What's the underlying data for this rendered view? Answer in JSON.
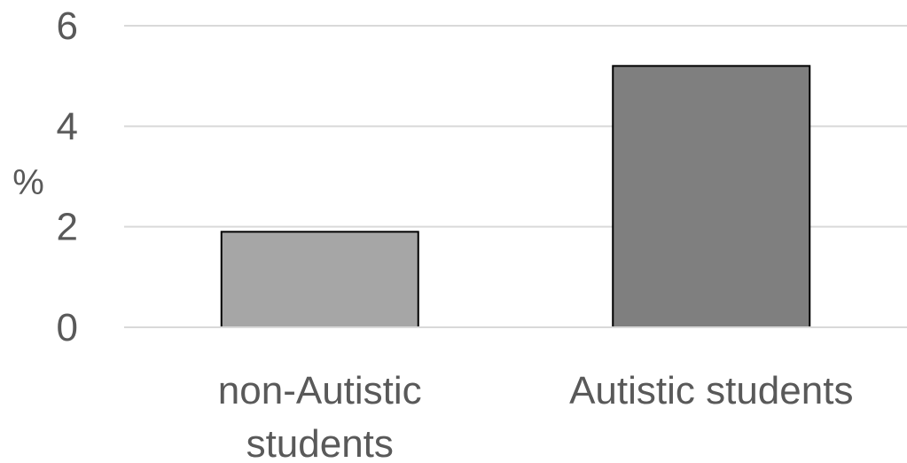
{
  "chart_data": {
    "type": "bar",
    "categories": [
      "non-Autistic students",
      "Autistic students"
    ],
    "category_label_lines": [
      [
        "non-Autistic",
        "students"
      ],
      [
        "Autistic students"
      ]
    ],
    "values": [
      1.9,
      5.2
    ],
    "bar_colors": [
      "#a6a6a6",
      "#7f7f7f"
    ],
    "bar_stroke": "#000000",
    "gridline_color": "#d9d9d9",
    "text_color": "#595959",
    "ylabel": "%",
    "ylim": [
      0,
      6
    ],
    "yticks": [
      "0",
      "2",
      "4",
      "6"
    ],
    "grid": true,
    "legend": "none"
  }
}
